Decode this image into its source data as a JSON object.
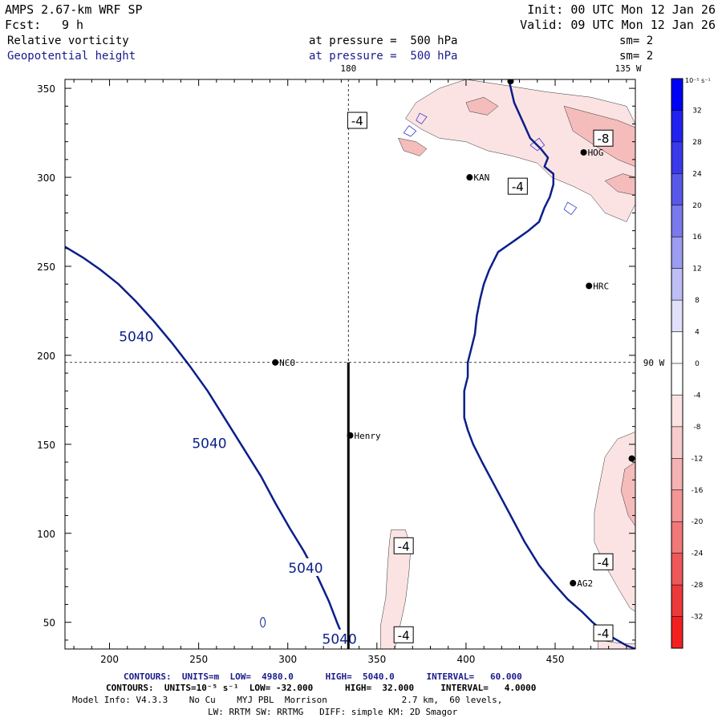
{
  "header": {
    "model": "AMPS 2.67-km WRF SP",
    "fcst_label": "Fcst:",
    "fcst_value": "9 h",
    "init": "Init: 00 UTC Mon 12 Jan 26",
    "valid": "Valid: 09 UTC Mon 12 Jan 26",
    "field1_name": "Relative vorticity",
    "field1_level": "at pressure =  500 hPa",
    "field1_sm": "sm= 2",
    "field2_name": "Geopotential height",
    "field2_level": "at pressure =  500 hPa",
    "field2_sm": "sm= 2"
  },
  "colors": {
    "navy": "#1a1a8c",
    "contour_line": "#0b1f8a",
    "shade_light": "#fbe3e3",
    "shade_mid": "#f5bcbc",
    "shade_strong": "#ee8e8e"
  },
  "footer": {
    "contours1": "CONTOURS:  UNITS=m  LOW=  4980.0      HIGH=  5040.0      INTERVAL=   60.000",
    "contours2": "CONTOURS:  UNITS=10⁻⁵ s⁻¹  LOW= -32.000      HIGH=  32.000     INTERVAL=   4.0000",
    "model_info": "Model Info: V4.3.3    No Cu    MYJ PBL  Morrison              2.7 km,  60 levels,",
    "model_info2": "LW: RRTM SW: RRTMG   DIFF: simple KM: 2D Smagor"
  },
  "chart_data": {
    "type": "contour",
    "xlim": [
      175,
      495
    ],
    "ylim": [
      35,
      355
    ],
    "x_ticks": [
      200,
      250,
      300,
      350,
      400,
      450
    ],
    "y_ticks": [
      50,
      100,
      150,
      200,
      250,
      300,
      350
    ],
    "meridian_labels": [
      "180",
      "135 W",
      "90 W"
    ],
    "grid_lines": {
      "vertical_x": 334,
      "horizontal_y": 196
    },
    "section_line": {
      "x": 334,
      "y": [
        35,
        196
      ]
    },
    "height_contours": [
      {
        "value": 5040,
        "points": [
          [
            175,
            261
          ],
          [
            185,
            255
          ],
          [
            195,
            248
          ],
          [
            205,
            240
          ],
          [
            215,
            230
          ],
          [
            225,
            219
          ],
          [
            235,
            207
          ],
          [
            245,
            194
          ],
          [
            255,
            180
          ],
          [
            265,
            164
          ],
          [
            275,
            148
          ],
          [
            285,
            132
          ],
          [
            293,
            117
          ],
          [
            301,
            103
          ],
          [
            309,
            90
          ],
          [
            317,
            75
          ],
          [
            323,
            62
          ],
          [
            328,
            49
          ],
          [
            333,
            37
          ]
        ],
        "labels": [
          {
            "text": "5040",
            "x": 215,
            "y": 211
          },
          {
            "text": "5040",
            "x": 256,
            "y": 151
          },
          {
            "text": "5040",
            "x": 310,
            "y": 81
          },
          {
            "text": "5040",
            "x": 329,
            "y": 41
          }
        ]
      }
    ],
    "coastline": [
      [
        424,
        355
      ],
      [
        427,
        342
      ],
      [
        432,
        331
      ],
      [
        436,
        322
      ],
      [
        442,
        316
      ],
      [
        446,
        311
      ],
      [
        444,
        306
      ],
      [
        449,
        302
      ],
      [
        449,
        296
      ],
      [
        447,
        289
      ],
      [
        444,
        283
      ],
      [
        441,
        275
      ],
      [
        435,
        270
      ],
      [
        428,
        265
      ],
      [
        418,
        258
      ],
      [
        413,
        248
      ],
      [
        410,
        240
      ],
      [
        408,
        232
      ],
      [
        406,
        222
      ],
      [
        405,
        212
      ],
      [
        403,
        204
      ],
      [
        401,
        196
      ],
      [
        401,
        188
      ],
      [
        399,
        180
      ],
      [
        399,
        173
      ],
      [
        399,
        165
      ],
      [
        401,
        158
      ],
      [
        404,
        150
      ],
      [
        409,
        140
      ],
      [
        417,
        125
      ],
      [
        425,
        110
      ],
      [
        433,
        95
      ],
      [
        441,
        82
      ],
      [
        449,
        72
      ],
      [
        457,
        63
      ],
      [
        465,
        56
      ],
      [
        471,
        50
      ],
      [
        477,
        45
      ],
      [
        483,
        41
      ],
      [
        490,
        37
      ],
      [
        495,
        35
      ]
    ],
    "vorticity_labels": [
      {
        "text": "-4",
        "x": 339,
        "y": 332
      },
      {
        "text": "-8",
        "x": 477,
        "y": 322
      },
      {
        "text": "-4",
        "x": 429,
        "y": 295
      },
      {
        "text": "-4",
        "x": 365,
        "y": 93
      },
      {
        "text": "-4",
        "x": 365,
        "y": 43
      },
      {
        "text": "-4",
        "x": 477,
        "y": 84
      },
      {
        "text": "-4",
        "x": 477,
        "y": 44
      }
    ],
    "stations": [
      {
        "name": "NCO",
        "x": 293,
        "y": 196
      },
      {
        "name": "Henry",
        "x": 335,
        "y": 155
      },
      {
        "name": "KAN",
        "x": 402,
        "y": 300
      },
      {
        "name": "HOG",
        "x": 466,
        "y": 314
      },
      {
        "name": "HRC",
        "x": 469,
        "y": 239
      },
      {
        "name": "AG2",
        "x": 460,
        "y": 72
      },
      {
        "name": "",
        "x": 493,
        "y": 142
      },
      {
        "name": "",
        "x": 425,
        "y": 354
      }
    ],
    "colorbar": {
      "unit_label": "10⁻⁵ s⁻¹",
      "levels": [
        -36,
        -32,
        -28,
        -24,
        -20,
        -16,
        -12,
        -8,
        -4,
        0,
        4,
        8,
        12,
        16,
        20,
        24,
        28,
        32,
        36
      ],
      "tick_labels": [
        "32",
        "28",
        "24",
        "20",
        "16",
        "12",
        "8",
        "4",
        "0",
        "-4",
        "-8",
        "-12",
        "-16",
        "-20",
        "-24",
        "-28",
        "-32"
      ],
      "colors_top_to_bottom": [
        "#0000f5",
        "#2222f0",
        "#3a3aea",
        "#5858e8",
        "#7a7aec",
        "#9c9cf0",
        "#bebef5",
        "#e0e0fa",
        "#ffffff",
        "#ffffff",
        "#fbe3e3",
        "#f8cccc",
        "#f5b2b2",
        "#f39696",
        "#f07878",
        "#ee5858",
        "#ec3a3a",
        "#f22020"
      ]
    }
  }
}
